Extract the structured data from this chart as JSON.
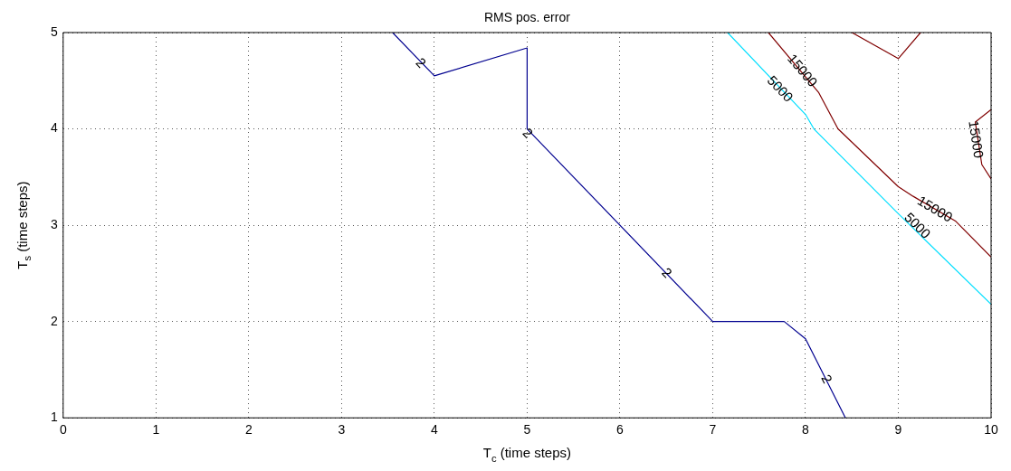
{
  "chart_data": {
    "type": "line",
    "title": "RMS pos. error",
    "xlabel": "T$_{c}$ (time steps)",
    "ylabel": "T$_{s}$ (time steps)",
    "xlim": [
      0,
      10
    ],
    "ylim": [
      1,
      5
    ],
    "xticks": [
      0,
      1,
      2,
      3,
      4,
      5,
      6,
      7,
      8,
      9,
      10
    ],
    "yticks": [
      1,
      2,
      3,
      4,
      5
    ],
    "grid": true,
    "line_style": "solid",
    "marker": "none",
    "series": [
      {
        "color": "#00008f",
        "x": [
          3.55,
          4.0,
          5.0,
          5.0,
          7.0,
          7.77,
          8.0,
          8.43
        ],
        "values": [
          5,
          4.55,
          4.84,
          4.0,
          2.0,
          2.0,
          1.82,
          1
        ]
      },
      {
        "color": "#00dfff",
        "x": [
          7.16,
          8.0,
          8.09,
          9.0,
          10
        ],
        "values": [
          5,
          4.15,
          4.0,
          3.12,
          2.18
        ]
      },
      {
        "color": "#800000",
        "x": [
          7.6,
          8.14,
          8.35,
          9.0,
          9.16,
          9.62,
          10
        ],
        "values": [
          5,
          4.38,
          4.0,
          3.4,
          3.3,
          3.04,
          2.67
        ]
      },
      {
        "color": "#800000",
        "x": [
          8.5,
          9.0,
          9.24
        ],
        "values": [
          5,
          4.73,
          5
        ]
      },
      {
        "color": "#800000",
        "x": [
          10,
          9.83,
          9.9,
          10
        ],
        "values": [
          4.2,
          4.07,
          3.63,
          3.48
        ]
      }
    ],
    "annotations": [
      {
        "text": "2",
        "x": 3.85,
        "y": 4.68
      },
      {
        "text": "2",
        "x": 5.0,
        "y": 3.95
      },
      {
        "text": "2",
        "x": 6.5,
        "y": 2.5
      },
      {
        "text": "2",
        "x": 8.22,
        "y": 1.4
      },
      {
        "text": "5000",
        "x": 7.72,
        "y": 4.41
      },
      {
        "text": "5000",
        "x": 9.2,
        "y": 2.99
      },
      {
        "text": "15000",
        "x": 7.96,
        "y": 4.6
      },
      {
        "text": "15000",
        "x": 9.39,
        "y": 3.16
      },
      {
        "text": "15000",
        "x": 9.83,
        "y": 3.89
      }
    ]
  }
}
